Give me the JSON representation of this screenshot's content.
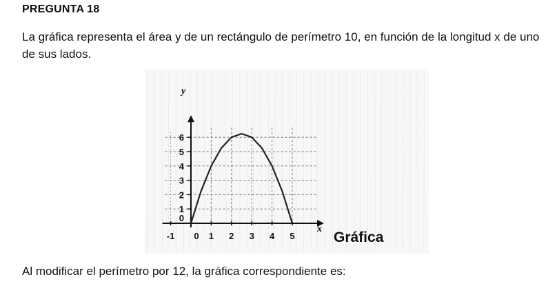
{
  "question": {
    "title": "PREGUNTA 18",
    "statement": "La gráfica representa el área y de un rectángulo de perímetro 10, en función de la longitud x de uno de sus lados.",
    "follow_up": "Al modificar el perímetro por 12, la gráfica correspondiente es:"
  },
  "figure": {
    "caption": "Gráfica"
  },
  "chart_data": {
    "type": "line",
    "title": "",
    "xlabel": "x",
    "ylabel": "y",
    "xlim": [
      -1,
      5
    ],
    "ylim": [
      0,
      6
    ],
    "x_ticks": [
      "-1",
      "0",
      "1",
      "2",
      "3",
      "4",
      "5"
    ],
    "y_ticks": [
      "0",
      "1",
      "2",
      "3",
      "4",
      "5",
      "6"
    ],
    "grid": true,
    "grid_style": "dashed",
    "series": [
      {
        "x": [
          0,
          0.5,
          1,
          1.5,
          2,
          2.5,
          3,
          3.5,
          4,
          4.5,
          5
        ],
        "values": [
          0,
          2.25,
          4,
          5.25,
          6,
          6.25,
          6,
          5.25,
          4,
          2.25,
          0
        ],
        "color": "#222222"
      }
    ]
  }
}
